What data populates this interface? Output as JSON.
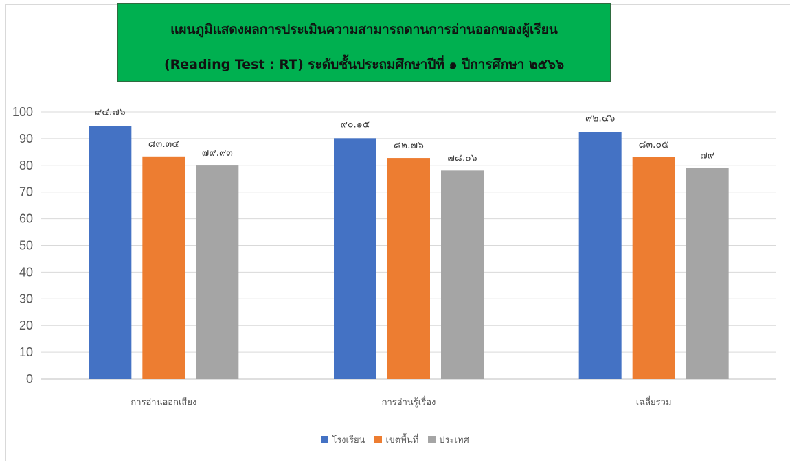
{
  "chart_data": {
    "type": "bar",
    "title": "แผนภูมิแสดงผลการประเมินความสามารถดานการอ่านออกของผู้เรียน",
    "subtitle": "(Reading Test : RT) ระดับชั้นประถมศึกษาปีที่ ๑ ปีการศึกษา ๒๕๖๖",
    "categories": [
      "การอ่านออกเสียง",
      "การอ่านรู้เรื่อง",
      "เฉลี่ยรวม"
    ],
    "series": [
      {
        "name": "โรงเรียน",
        "color": "#4472c4",
        "values": [
          94.76,
          90.15,
          92.46
        ],
        "labels": [
          "๙๔.๗๖",
          "๙๐.๑๕",
          "๙๒.๔๖"
        ]
      },
      {
        "name": "เขตพื้นที่",
        "color": "#ed7d31",
        "values": [
          83.34,
          82.76,
          83.05
        ],
        "labels": [
          "๘๓.๓๔",
          "๘๒.๗๖",
          "๘๓.๐๕"
        ]
      },
      {
        "name": "ประเทศ",
        "color": "#a5a5a5",
        "values": [
          79.93,
          78.06,
          79
        ],
        "labels": [
          "๗๙.๙๓",
          "๗๘.๐๖",
          "๗๙"
        ]
      }
    ],
    "ylim": [
      0,
      100
    ],
    "yticks": [
      "0",
      "10",
      "20",
      "30",
      "40",
      "50",
      "60",
      "70",
      "80",
      "90",
      "100"
    ],
    "grid": true,
    "legend_position": "bottom"
  }
}
